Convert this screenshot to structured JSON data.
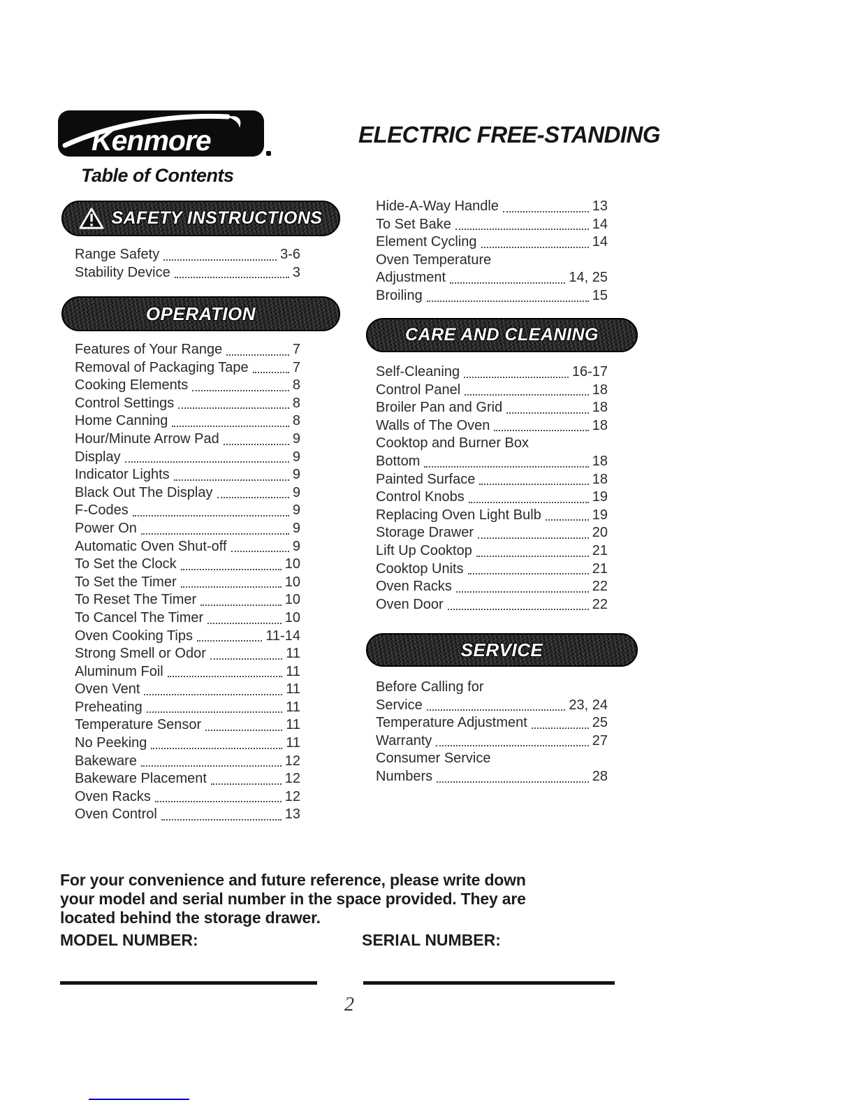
{
  "header": {
    "logo": {
      "brand": "Kenmore",
      "registered_mark": "registered-dot"
    },
    "doc_title": "ELECTRIC FREE-STANDING",
    "toc_title": "Table of Contents"
  },
  "sections": {
    "safety": {
      "banner": "SAFETY INSTRUCTIONS",
      "icon": "warning-triangle-icon",
      "entries": [
        {
          "label": "Range Safety",
          "page": "3-6"
        },
        {
          "label": "Stability Device",
          "page": "3"
        }
      ]
    },
    "operation": {
      "banner": "OPERATION",
      "entries": [
        {
          "label": "Features of Your Range",
          "page": "7"
        },
        {
          "label": "Removal of Packaging Tape",
          "page": "7"
        },
        {
          "label": "Cooking Elements",
          "page": "8"
        },
        {
          "label": "Control Settings",
          "page": "8"
        },
        {
          "label": "Home Canning",
          "page": "8"
        },
        {
          "label": "Hour/Minute Arrow Pad",
          "page": "9"
        },
        {
          "label": "Display",
          "page": "9"
        },
        {
          "label": "Indicator Lights",
          "page": "9"
        },
        {
          "label": "Black Out The Display",
          "page": "9"
        },
        {
          "label": "F-Codes",
          "page": "9"
        },
        {
          "label": "Power On",
          "page": "9"
        },
        {
          "label": "Automatic Oven Shut-off",
          "page": "9"
        },
        {
          "label": "To Set the Clock",
          "page": "10"
        },
        {
          "label": "To Set the Timer",
          "page": "10"
        },
        {
          "label": "To Reset The Timer",
          "page": "10"
        },
        {
          "label": "To Cancel The Timer",
          "page": "10"
        },
        {
          "label": "Oven Cooking Tips",
          "page": "11-14"
        },
        {
          "label": "Strong Smell or Odor",
          "page": "11"
        },
        {
          "label": "Aluminum Foil",
          "page": "11"
        },
        {
          "label": "Oven Vent",
          "page": "11"
        },
        {
          "label": "Preheating",
          "page": "11"
        },
        {
          "label": "Temperature Sensor",
          "page": "11"
        },
        {
          "label": "No Peeking",
          "page": "11"
        },
        {
          "label": "Bakeware",
          "page": "12"
        },
        {
          "label": "Bakeware Placement",
          "page": "12"
        },
        {
          "label": "Oven Racks",
          "page": "12"
        },
        {
          "label": "Oven Control",
          "page": "13"
        }
      ],
      "entries_continued": [
        {
          "label": "Hide-A-Way Handle",
          "page": "13"
        },
        {
          "label": "To Set Bake",
          "page": "14"
        },
        {
          "label": "Element Cycling",
          "page": "14"
        },
        {
          "label": "Oven Temperature",
          "page": null
        },
        {
          "label": "Adjustment",
          "page": "14, 25"
        },
        {
          "label": "Broiling",
          "page": "15"
        }
      ]
    },
    "care": {
      "banner": "CARE AND CLEANING",
      "entries": [
        {
          "label": "Self-Cleaning",
          "page": "16-17"
        },
        {
          "label": "Control Panel",
          "page": "18"
        },
        {
          "label": "Broiler Pan and Grid",
          "page": "18"
        },
        {
          "label": "Walls of The Oven",
          "page": "18"
        },
        {
          "label": "Cooktop and Burner Box",
          "page": null
        },
        {
          "label": "Bottom",
          "page": "18"
        },
        {
          "label": "Painted Surface",
          "page": "18"
        },
        {
          "label": "Control Knobs",
          "page": "19"
        },
        {
          "label": "Replacing Oven Light Bulb",
          "page": "19"
        },
        {
          "label": "Storage Drawer",
          "page": "20"
        },
        {
          "label": "Lift Up Cooktop",
          "page": "21"
        },
        {
          "label": "Cooktop Units",
          "page": "21"
        },
        {
          "label": "Oven Racks",
          "page": "22"
        },
        {
          "label": "Oven Door",
          "page": "22"
        }
      ]
    },
    "service": {
      "banner": "SERVICE",
      "entries": [
        {
          "label": "Before Calling for",
          "page": null
        },
        {
          "label": "Service",
          "page": "23, 24"
        },
        {
          "label": "Temperature Adjustment",
          "page": "25"
        },
        {
          "label": "Warranty",
          "page": "27"
        },
        {
          "label": "Consumer Service",
          "page": null
        },
        {
          "label": "Numbers",
          "page": "28"
        }
      ]
    }
  },
  "footer": {
    "note_lines": [
      "For your convenience and future reference, please write down",
      "your model and serial number in the space provided. They are",
      "located behind the storage drawer."
    ],
    "model_label": "MODEL NUMBER:",
    "serial_label": "SERIAL NUMBER:",
    "page_number": "2"
  },
  "colors": {
    "ink": "#262626",
    "banner_black": "#181818",
    "logo_black": "#0c0c0c",
    "blue_line": "#0000cc"
  }
}
